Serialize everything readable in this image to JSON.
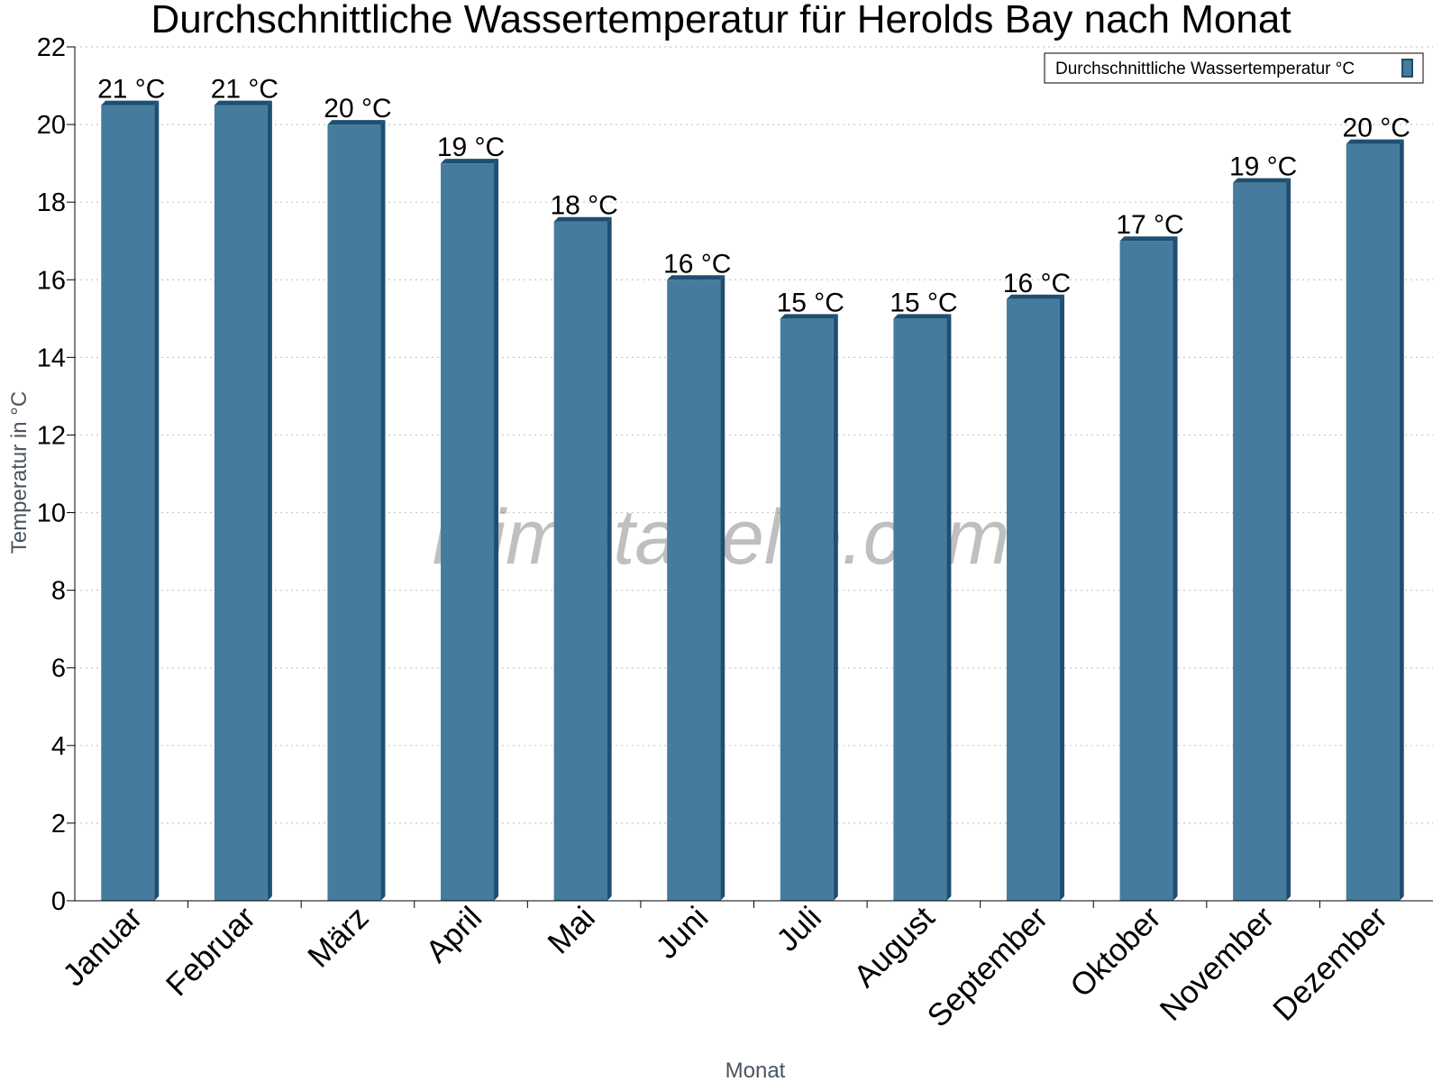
{
  "chart_data": {
    "type": "bar",
    "title": "Durchschnittliche Wassertemperatur für Herolds Bay nach Monat",
    "xlabel": "Monat",
    "ylabel": "Temperatur in °C",
    "ylim": [
      0,
      22
    ],
    "yticks": [
      0,
      2,
      4,
      6,
      8,
      10,
      12,
      14,
      16,
      18,
      20,
      22
    ],
    "grid": true,
    "legend_position": "top-right",
    "categories": [
      "Januar",
      "Februar",
      "März",
      "April",
      "Mai",
      "Juni",
      "Juli",
      "August",
      "September",
      "Oktober",
      "November",
      "Dezember"
    ],
    "series": [
      {
        "name": "Durchschnittliche Wassertemperatur °C",
        "values": [
          20.5,
          20.5,
          20.0,
          19.0,
          17.5,
          16.0,
          15.0,
          15.0,
          15.5,
          17.0,
          18.5,
          19.5
        ],
        "labels": [
          "21 °C",
          "21 °C",
          "20 °C",
          "19 °C",
          "18 °C",
          "16 °C",
          "15 °C",
          "15 °C",
          "16 °C",
          "17 °C",
          "19 °C",
          "20 °C"
        ],
        "color": "#457b9d"
      }
    ],
    "watermark": "klimatabelle.com"
  }
}
